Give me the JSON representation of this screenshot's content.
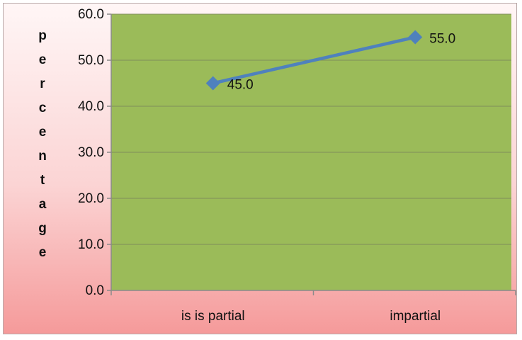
{
  "chart_data": {
    "type": "line",
    "title": "",
    "xlabel": "",
    "ylabel": "percentage",
    "categories": [
      "is is partial",
      "impartial"
    ],
    "series": [
      {
        "values": [
          45.0,
          55.0
        ],
        "color": "#4f81bd",
        "marker": "diamond"
      }
    ],
    "data_labels": [
      "45.0",
      "55.0"
    ],
    "ylim": [
      0,
      60
    ],
    "yticks": [
      "0.0",
      "10.0",
      "20.0",
      "30.0",
      "40.0",
      "50.0",
      "60.0"
    ],
    "grid": true,
    "legend": "none",
    "colors": {
      "plot_area": "#9bbb59",
      "line": "#4f81bd",
      "gridline": "#7f8c5a",
      "frame_gradient_top": "#fff6f6",
      "frame_gradient_bottom": "#f59a9a"
    }
  }
}
